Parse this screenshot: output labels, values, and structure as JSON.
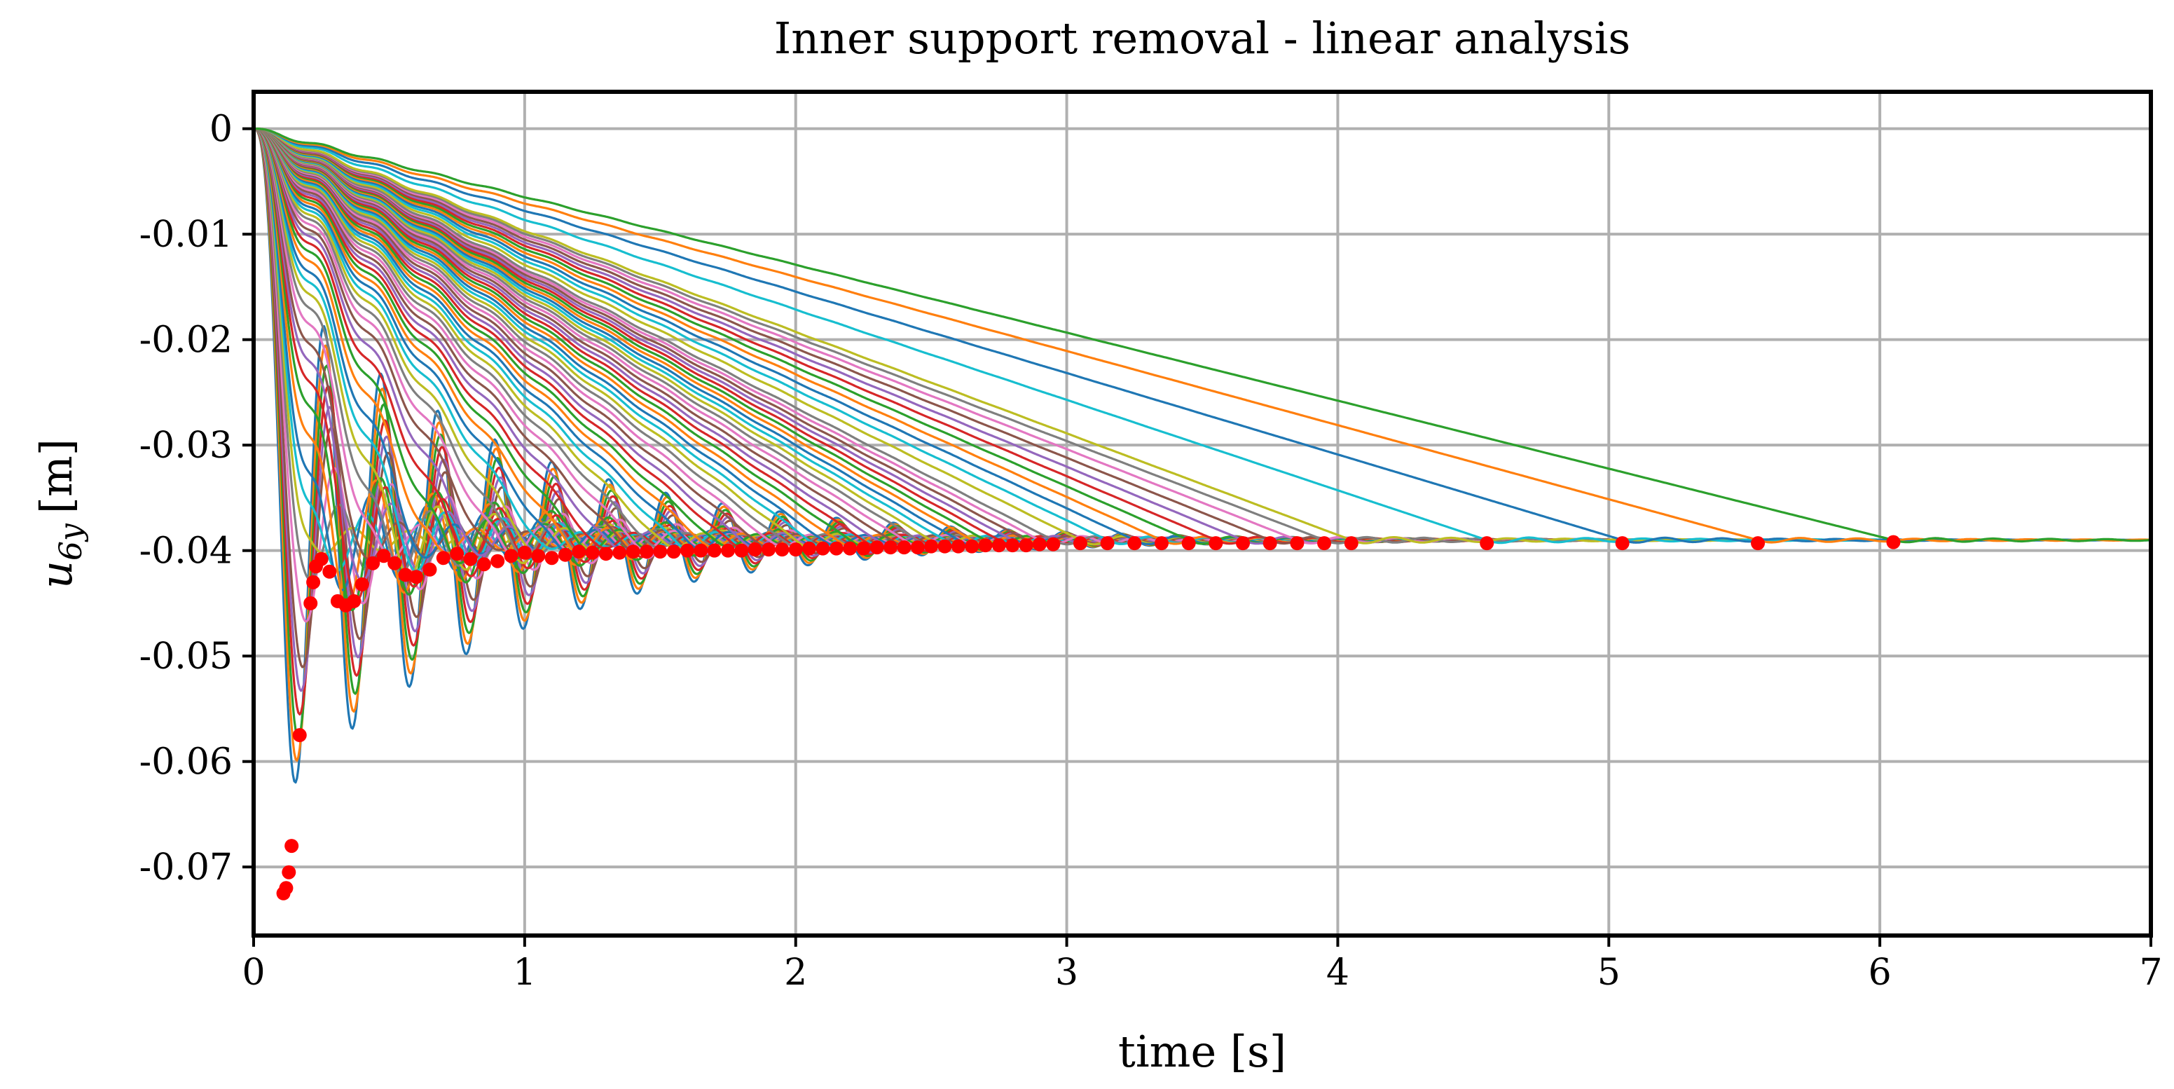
{
  "chart_data": {
    "type": "line",
    "title": "Inner support removal - linear analysis",
    "xlabel": "time [s]",
    "ylabel_main": "u",
    "ylabel_sub": "6y",
    "ylabel_unit": "[m]",
    "xlim": [
      0,
      7
    ],
    "ylim": [
      -0.0765,
      0.0035
    ],
    "xticks": [
      0,
      1,
      2,
      3,
      4,
      5,
      6,
      7
    ],
    "xtick_labels": [
      "0",
      "1",
      "2",
      "3",
      "4",
      "5",
      "6",
      "7"
    ],
    "yticks": [
      0,
      -0.01,
      -0.02,
      -0.03,
      -0.04,
      -0.05,
      -0.06,
      -0.07
    ],
    "ytick_labels": [
      "0",
      "-0.01",
      "-0.02",
      "-0.03",
      "-0.04",
      "-0.05",
      "-0.06",
      "-0.07"
    ],
    "grid": true,
    "legend": "none",
    "static_displacement": -0.039,
    "natural_period": 0.21,
    "palette": [
      "#1f77b4",
      "#ff7f0e",
      "#2ca02c",
      "#d62728",
      "#9467bd",
      "#8c564b",
      "#e377c2",
      "#7f7f7f",
      "#bcbd22",
      "#17becf"
    ],
    "marker_color": "#ff0000",
    "series_removal_times": [
      0.1,
      0.11,
      0.12,
      0.13,
      0.14,
      0.15,
      0.17,
      0.19,
      0.21,
      0.23,
      0.25,
      0.28,
      0.31,
      0.34,
      0.37,
      0.4,
      0.44,
      0.48,
      0.52,
      0.56,
      0.6,
      0.65,
      0.7,
      0.75,
      0.8,
      0.85,
      0.9,
      0.95,
      1.0,
      1.05,
      1.1,
      1.15,
      1.2,
      1.25,
      1.3,
      1.35,
      1.4,
      1.45,
      1.5,
      1.55,
      1.6,
      1.65,
      1.7,
      1.75,
      1.8,
      1.85,
      1.9,
      1.95,
      2.0,
      2.05,
      2.1,
      2.15,
      2.2,
      2.25,
      2.3,
      2.35,
      2.4,
      2.45,
      2.5,
      2.55,
      2.6,
      2.65,
      2.7,
      2.75,
      2.8,
      2.85,
      2.9,
      2.95,
      3.05,
      3.15,
      3.25,
      3.35,
      3.45,
      3.55,
      3.65,
      3.75,
      3.85,
      3.95,
      4.05,
      4.55,
      5.05,
      5.55,
      6.05
    ],
    "max_response_points": [
      [
        0.11,
        -0.0725
      ],
      [
        0.12,
        -0.072
      ],
      [
        0.13,
        -0.0705
      ],
      [
        0.14,
        -0.068
      ],
      [
        0.17,
        -0.0575
      ],
      [
        0.21,
        -0.045
      ],
      [
        0.22,
        -0.043
      ],
      [
        0.23,
        -0.0415
      ],
      [
        0.25,
        -0.0408
      ],
      [
        0.28,
        -0.042
      ],
      [
        0.31,
        -0.0448
      ],
      [
        0.34,
        -0.0452
      ],
      [
        0.37,
        -0.0448
      ],
      [
        0.4,
        -0.0432
      ],
      [
        0.44,
        -0.0412
      ],
      [
        0.48,
        -0.0405
      ],
      [
        0.52,
        -0.0412
      ],
      [
        0.56,
        -0.0423
      ],
      [
        0.6,
        -0.0425
      ],
      [
        0.65,
        -0.0418
      ],
      [
        0.7,
        -0.0407
      ],
      [
        0.75,
        -0.0403
      ],
      [
        0.8,
        -0.0408
      ],
      [
        0.85,
        -0.0413
      ],
      [
        0.9,
        -0.041
      ],
      [
        0.95,
        -0.0405
      ],
      [
        1.0,
        -0.0402
      ],
      [
        1.05,
        -0.0405
      ],
      [
        1.1,
        -0.0407
      ],
      [
        1.15,
        -0.0404
      ],
      [
        1.2,
        -0.0401
      ],
      [
        1.25,
        -0.0402
      ],
      [
        1.3,
        -0.0403
      ],
      [
        1.35,
        -0.0402
      ],
      [
        1.4,
        -0.0401
      ],
      [
        1.45,
        -0.0401
      ],
      [
        1.5,
        -0.0401
      ],
      [
        1.55,
        -0.0401
      ],
      [
        1.6,
        -0.04
      ],
      [
        1.65,
        -0.04
      ],
      [
        1.7,
        -0.04
      ],
      [
        1.75,
        -0.04
      ],
      [
        1.8,
        -0.04
      ],
      [
        1.85,
        -0.0399
      ],
      [
        1.9,
        -0.0399
      ],
      [
        1.95,
        -0.0399
      ],
      [
        2.0,
        -0.0399
      ],
      [
        2.05,
        -0.0398
      ],
      [
        2.1,
        -0.0398
      ],
      [
        2.15,
        -0.0398
      ],
      [
        2.2,
        -0.0398
      ],
      [
        2.25,
        -0.0398
      ],
      [
        2.3,
        -0.0397
      ],
      [
        2.35,
        -0.0397
      ],
      [
        2.4,
        -0.0397
      ],
      [
        2.45,
        -0.0397
      ],
      [
        2.5,
        -0.0396
      ],
      [
        2.55,
        -0.0396
      ],
      [
        2.6,
        -0.0396
      ],
      [
        2.65,
        -0.0396
      ],
      [
        2.7,
        -0.0395
      ],
      [
        2.75,
        -0.0395
      ],
      [
        2.8,
        -0.0395
      ],
      [
        2.85,
        -0.0395
      ],
      [
        2.9,
        -0.0394
      ],
      [
        2.95,
        -0.0394
      ],
      [
        3.05,
        -0.0393
      ],
      [
        3.15,
        -0.0393
      ],
      [
        3.25,
        -0.0393
      ],
      [
        3.35,
        -0.0393
      ],
      [
        3.45,
        -0.0393
      ],
      [
        3.55,
        -0.0393
      ],
      [
        3.65,
        -0.0393
      ],
      [
        3.75,
        -0.0393
      ],
      [
        3.85,
        -0.0393
      ],
      [
        3.95,
        -0.0393
      ],
      [
        4.05,
        -0.0393
      ],
      [
        4.55,
        -0.0393
      ],
      [
        5.05,
        -0.0393
      ],
      [
        5.55,
        -0.0393
      ],
      [
        6.05,
        -0.0392
      ]
    ]
  }
}
